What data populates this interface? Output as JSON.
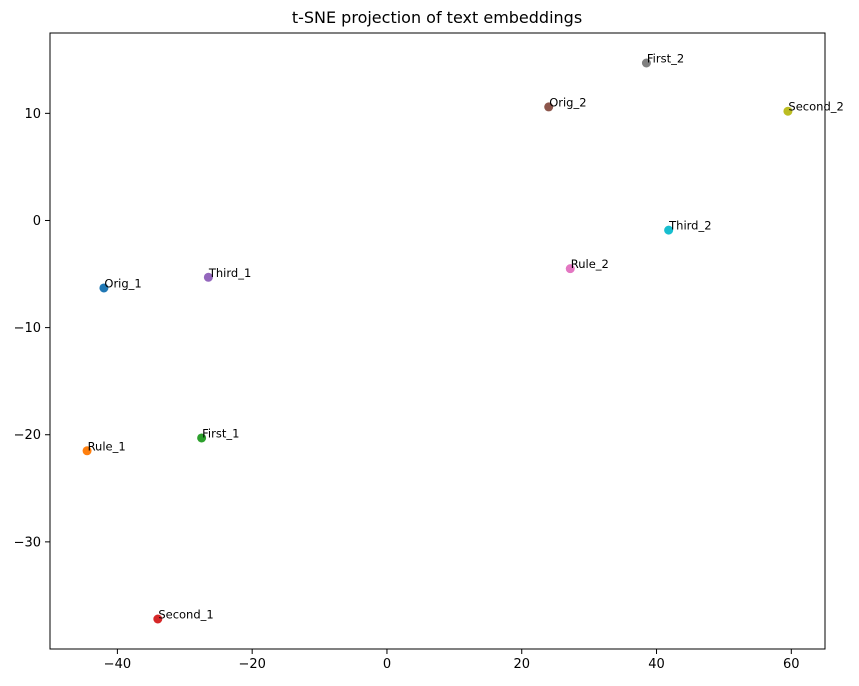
{
  "chart_data": {
    "type": "scatter",
    "title": "t-SNE projection of text embeddings",
    "xlabel": "",
    "ylabel": "",
    "xlim": [
      -50,
      65
    ],
    "ylim": [
      -40,
      17.5
    ],
    "xticks": [
      -40,
      -20,
      0,
      20,
      40,
      60
    ],
    "yticks": [
      -30,
      -20,
      -10,
      0,
      10
    ],
    "xtick_labels": [
      "−40",
      "−20",
      "0",
      "20",
      "40",
      "60"
    ],
    "ytick_labels": [
      "−30",
      "−20",
      "−10",
      "0",
      "10"
    ],
    "grid": false,
    "points": [
      {
        "label": "Orig_1",
        "x": -42.0,
        "y": -6.3,
        "color": "#1f77b4"
      },
      {
        "label": "Rule_1",
        "x": -44.5,
        "y": -21.5,
        "color": "#ff7f0e"
      },
      {
        "label": "First_1",
        "x": -27.5,
        "y": -20.3,
        "color": "#2ca02c"
      },
      {
        "label": "Second_1",
        "x": -34.0,
        "y": -37.2,
        "color": "#d62728"
      },
      {
        "label": "Third_1",
        "x": -26.5,
        "y": -5.3,
        "color": "#9467bd"
      },
      {
        "label": "Orig_2",
        "x": 24.0,
        "y": 10.6,
        "color": "#8c564b"
      },
      {
        "label": "Rule_2",
        "x": 27.2,
        "y": -4.5,
        "color": "#e377c2"
      },
      {
        "label": "First_2",
        "x": 38.5,
        "y": 14.7,
        "color": "#7f7f7f"
      },
      {
        "label": "Second_2",
        "x": 59.5,
        "y": 10.2,
        "color": "#bcbd22"
      },
      {
        "label": "Third_2",
        "x": 41.8,
        "y": -0.9,
        "color": "#17becf"
      }
    ]
  }
}
